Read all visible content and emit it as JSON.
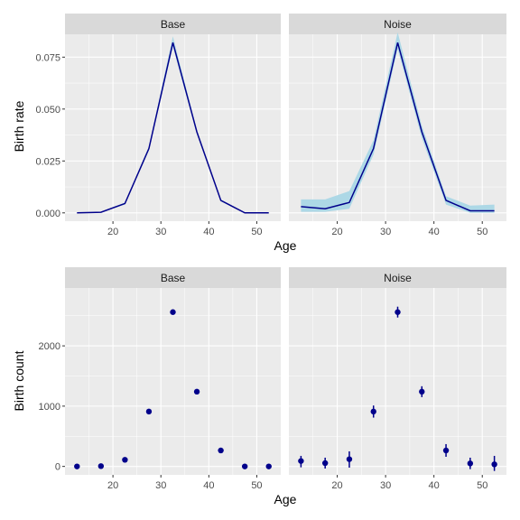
{
  "colors": {
    "panel_bg": "#EBEBEB",
    "strip_bg": "#D9D9D9",
    "grid_major": "#FFFFFF",
    "line": "#00008B",
    "ribbon": "#ADD8E6",
    "point": "#00008B"
  },
  "chart_data": [
    {
      "type": "line",
      "facet": "Base",
      "xlabel": "Age",
      "ylabel": "Birth rate",
      "xlim": [
        10,
        55
      ],
      "ylim": [
        -0.004,
        0.086
      ],
      "xticks": [
        20,
        30,
        40,
        50
      ],
      "yticks": [
        0.0,
        0.025,
        0.05,
        0.075
      ],
      "ytick_labels": [
        "0.000",
        "0.025",
        "0.050",
        "0.075"
      ],
      "x": [
        12.5,
        17.5,
        22.5,
        27.5,
        32.5,
        37.5,
        42.5,
        47.5,
        52.5
      ],
      "y": [
        0.0,
        0.0003,
        0.0045,
        0.031,
        0.082,
        0.039,
        0.006,
        0.0,
        0.0
      ],
      "lower": [
        0.0,
        0.0002,
        0.004,
        0.03,
        0.08,
        0.038,
        0.0055,
        0.0,
        0.0
      ],
      "upper": [
        0.0001,
        0.0005,
        0.005,
        0.032,
        0.085,
        0.04,
        0.0065,
        0.0001,
        0.0001
      ]
    },
    {
      "type": "line",
      "facet": "Noise",
      "xlabel": "Age",
      "ylabel": "Birth rate",
      "xlim": [
        10,
        55
      ],
      "ylim": [
        -0.004,
        0.086
      ],
      "xticks": [
        20,
        30,
        40,
        50
      ],
      "yticks": [
        0.0,
        0.025,
        0.05,
        0.075
      ],
      "ytick_labels": [
        "0.000",
        "0.025",
        "0.050",
        "0.075"
      ],
      "x": [
        12.5,
        17.5,
        22.5,
        27.5,
        32.5,
        37.5,
        42.5,
        47.5,
        52.5
      ],
      "y": [
        0.003,
        0.002,
        0.005,
        0.031,
        0.082,
        0.039,
        0.006,
        0.001,
        0.001
      ],
      "lower": [
        0.0005,
        0.0005,
        0.002,
        0.028,
        0.079,
        0.036,
        0.004,
        0.0,
        0.0
      ],
      "upper": [
        0.0065,
        0.0065,
        0.0105,
        0.035,
        0.087,
        0.042,
        0.008,
        0.0035,
        0.004
      ]
    },
    {
      "type": "scatter",
      "facet": "Base",
      "xlabel": "Age",
      "ylabel": "Birth count",
      "xlim": [
        10,
        55
      ],
      "ylim": [
        -140,
        2960
      ],
      "xticks": [
        20,
        30,
        40,
        50
      ],
      "yticks": [
        0,
        1000,
        2000
      ],
      "ytick_labels": [
        "0",
        "1000",
        "2000"
      ],
      "x": [
        12.5,
        17.5,
        22.5,
        27.5,
        32.5,
        37.5,
        42.5,
        47.5,
        52.5
      ],
      "y": [
        0,
        5,
        110,
        910,
        2560,
        1240,
        265,
        0,
        0
      ]
    },
    {
      "type": "scatter",
      "facet": "Noise",
      "xlabel": "Age",
      "ylabel": "Birth count",
      "xlim": [
        10,
        55
      ],
      "ylim": [
        -140,
        2960
      ],
      "xticks": [
        20,
        30,
        40,
        50
      ],
      "yticks": [
        0,
        1000,
        2000
      ],
      "ytick_labels": [
        "0",
        "1000",
        "2000"
      ],
      "x": [
        12.5,
        17.5,
        22.5,
        27.5,
        32.5,
        37.5,
        42.5,
        47.5,
        52.5
      ],
      "y": [
        90,
        55,
        120,
        910,
        2560,
        1240,
        265,
        50,
        35
      ],
      "lower": [
        -15,
        -35,
        -20,
        810,
        2470,
        1150,
        160,
        -45,
        -75
      ],
      "upper": [
        175,
        145,
        250,
        1010,
        2650,
        1330,
        370,
        145,
        175
      ]
    }
  ],
  "labels": {
    "top_ylabel": "Birth rate",
    "bottom_ylabel": "Birth count",
    "top_xlabel": "Age",
    "bottom_xlabel": "Age",
    "strip_base_top": "Base",
    "strip_noise_top": "Noise",
    "strip_base_bottom": "Base",
    "strip_noise_bottom": "Noise"
  }
}
